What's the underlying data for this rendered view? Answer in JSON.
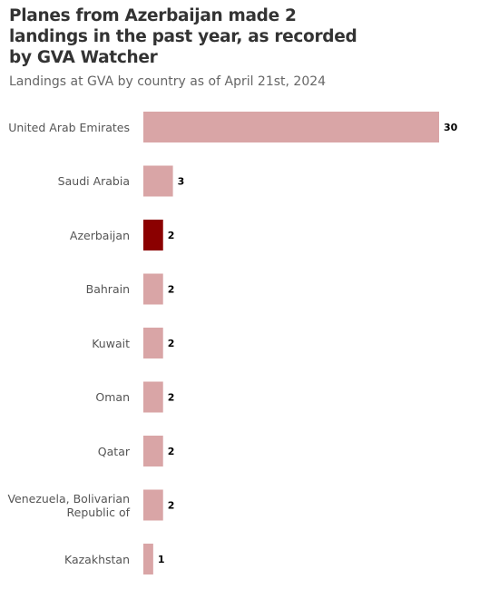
{
  "chart_data": {
    "type": "bar",
    "orientation": "horizontal",
    "title": "Planes from Azerbaijan made 2 landings in the past year, as recorded by GVA Watcher",
    "subtitle": "Landings at GVA by country as of April 21st, 2024",
    "categories": [
      "United Arab Emirates",
      "Saudi Arabia",
      "Azerbaijan",
      "Bahrain",
      "Kuwait",
      "Oman",
      "Qatar",
      "Venezuela, Bolivarian Republic of",
      "Kazakhstan"
    ],
    "values": [
      30,
      3,
      2,
      2,
      2,
      2,
      2,
      2,
      1
    ],
    "colors": [
      "#d9a5a6",
      "#d9a5a6",
      "#8b0000",
      "#d9a5a6",
      "#d9a5a6",
      "#d9a5a6",
      "#d9a5a6",
      "#d9a5a6",
      "#d9a5a6"
    ],
    "xlim": [
      0,
      30
    ]
  }
}
